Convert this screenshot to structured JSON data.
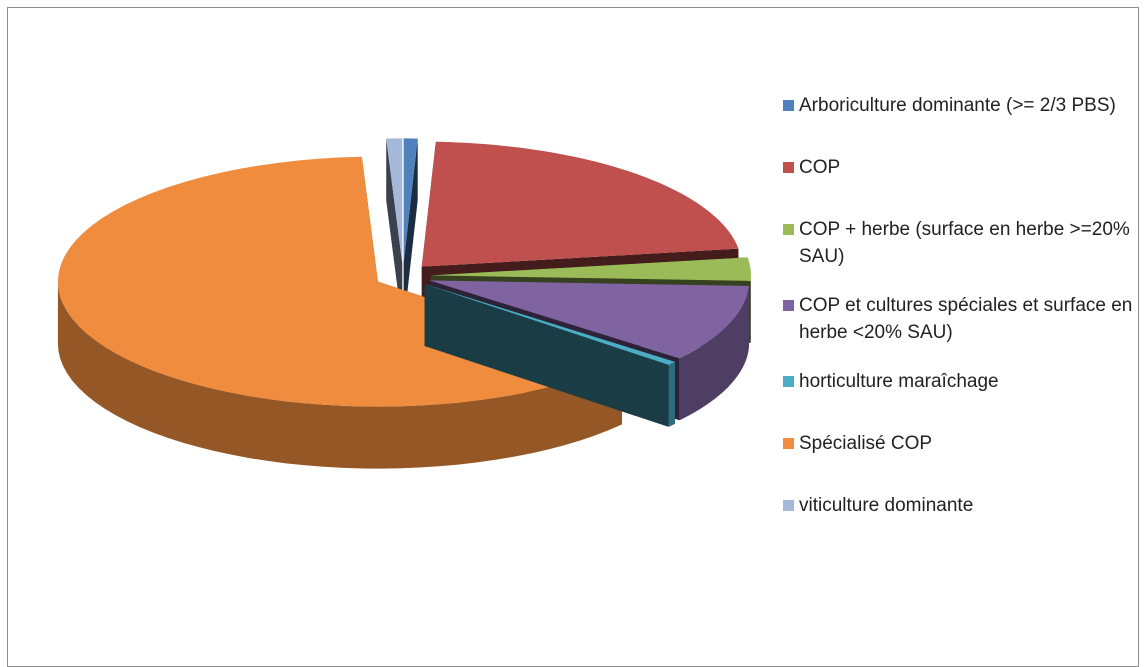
{
  "chart_data": {
    "type": "pie3d",
    "categories": [
      "Arboriculture dominante (>= 2/3 PBS)",
      "COP",
      "COP + herbe (surface en herbe >=20% SAU)",
      "COP et cultures spéciales et surface en herbe <20% SAU)",
      "horticulture maraîchage",
      "Spécialisé COP",
      "viticulture dominante"
    ],
    "values": [
      0.7,
      22,
      3,
      10,
      0.5,
      63,
      0.8
    ],
    "colors": [
      "#4f81bd",
      "#c0504d",
      "#9bbb59",
      "#8064a2",
      "#4bacc6",
      "#f08c3e",
      "#a5b8da"
    ],
    "legend": "right"
  }
}
